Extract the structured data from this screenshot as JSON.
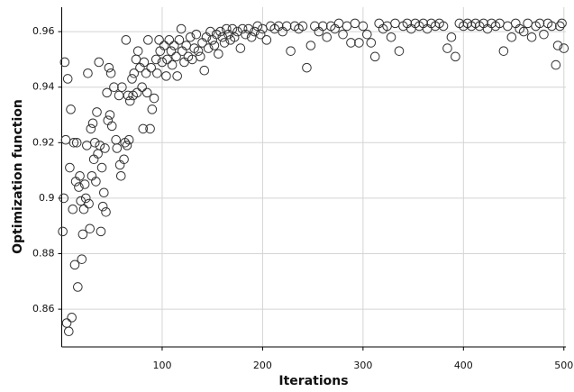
{
  "chart_data": {
    "type": "scatter",
    "xlabel": "Iterations",
    "ylabel": "Optimization function",
    "color": "#333333",
    "grid": true,
    "xlim": [
      0,
      502
    ],
    "ylim": [
      0.8464,
      0.9688
    ],
    "xticks": [
      100,
      200,
      300,
      400,
      500
    ],
    "yticks": [
      0.86,
      0.88,
      0.9,
      0.92,
      0.94,
      0.96
    ],
    "x": [
      1,
      2,
      3,
      4,
      5,
      6,
      7,
      8,
      9,
      10,
      11,
      12,
      13,
      14,
      15,
      16,
      17,
      18,
      19,
      20,
      21,
      22,
      23,
      24,
      25,
      26,
      27,
      28,
      29,
      30,
      31,
      32,
      33,
      34,
      35,
      36,
      37,
      38,
      39,
      40,
      41,
      42,
      43,
      44,
      45,
      46,
      47,
      48,
      49,
      50,
      52,
      54,
      55,
      57,
      58,
      59,
      60,
      62,
      63,
      64,
      65,
      66,
      67,
      68,
      70,
      71,
      72,
      74,
      75,
      76,
      78,
      80,
      81,
      82,
      84,
      85,
      86,
      88,
      89,
      90,
      92,
      94,
      95,
      97,
      98,
      100,
      102,
      104,
      105,
      107,
      109,
      110,
      112,
      114,
      115,
      117,
      119,
      120,
      122,
      124,
      126,
      128,
      130,
      132,
      134,
      136,
      138,
      140,
      142,
      144,
      146,
      148,
      150,
      152,
      154,
      156,
      158,
      160,
      162,
      164,
      166,
      168,
      170,
      172,
      175,
      178,
      180,
      183,
      186,
      189,
      192,
      195,
      198,
      200,
      204,
      208,
      212,
      216,
      220,
      224,
      228,
      232,
      236,
      240,
      244,
      248,
      252,
      256,
      260,
      264,
      268,
      272,
      276,
      280,
      284,
      288,
      292,
      296,
      300,
      304,
      308,
      312,
      316,
      320,
      324,
      328,
      332,
      336,
      340,
      344,
      348,
      352,
      356,
      360,
      364,
      368,
      372,
      376,
      380,
      384,
      388,
      392,
      396,
      400,
      404,
      408,
      412,
      416,
      420,
      424,
      428,
      432,
      436,
      440,
      444,
      448,
      452,
      456,
      460,
      464,
      468,
      472,
      476,
      480,
      484,
      488,
      492,
      494,
      496,
      498,
      500
    ],
    "values": [
      0.888,
      0.9,
      0.949,
      0.921,
      0.855,
      0.943,
      0.852,
      0.911,
      0.932,
      0.857,
      0.896,
      0.92,
      0.876,
      0.906,
      0.92,
      0.868,
      0.904,
      0.908,
      0.899,
      0.878,
      0.887,
      0.896,
      0.905,
      0.9,
      0.919,
      0.945,
      0.898,
      0.889,
      0.925,
      0.908,
      0.927,
      0.914,
      0.92,
      0.906,
      0.931,
      0.916,
      0.949,
      0.919,
      0.888,
      0.911,
      0.897,
      0.902,
      0.918,
      0.895,
      0.938,
      0.928,
      0.947,
      0.93,
      0.945,
      0.926,
      0.94,
      0.921,
      0.918,
      0.937,
      0.912,
      0.908,
      0.94,
      0.914,
      0.92,
      0.957,
      0.919,
      0.937,
      0.921,
      0.935,
      0.943,
      0.937,
      0.945,
      0.95,
      0.938,
      0.953,
      0.947,
      0.94,
      0.925,
      0.949,
      0.945,
      0.938,
      0.957,
      0.925,
      0.947,
      0.932,
      0.936,
      0.95,
      0.945,
      0.957,
      0.953,
      0.949,
      0.955,
      0.944,
      0.95,
      0.957,
      0.953,
      0.948,
      0.955,
      0.951,
      0.944,
      0.957,
      0.961,
      0.953,
      0.949,
      0.955,
      0.951,
      0.958,
      0.95,
      0.954,
      0.959,
      0.953,
      0.951,
      0.956,
      0.946,
      0.958,
      0.954,
      0.96,
      0.957,
      0.955,
      0.959,
      0.952,
      0.96,
      0.958,
      0.956,
      0.961,
      0.959,
      0.957,
      0.961,
      0.958,
      0.96,
      0.954,
      0.961,
      0.959,
      0.961,
      0.958,
      0.96,
      0.962,
      0.959,
      0.961,
      0.957,
      0.962,
      0.961,
      0.962,
      0.96,
      0.962,
      0.953,
      0.962,
      0.961,
      0.962,
      0.947,
      0.955,
      0.962,
      0.96,
      0.962,
      0.958,
      0.962,
      0.961,
      0.963,
      0.959,
      0.962,
      0.956,
      0.963,
      0.956,
      0.962,
      0.959,
      0.956,
      0.951,
      0.963,
      0.961,
      0.962,
      0.958,
      0.963,
      0.953,
      0.962,
      0.963,
      0.961,
      0.963,
      0.962,
      0.963,
      0.961,
      0.963,
      0.962,
      0.963,
      0.962,
      0.954,
      0.958,
      0.951,
      0.963,
      0.962,
      0.963,
      0.962,
      0.963,
      0.962,
      0.963,
      0.961,
      0.963,
      0.962,
      0.963,
      0.953,
      0.962,
      0.958,
      0.963,
      0.961,
      0.96,
      0.963,
      0.958,
      0.962,
      0.963,
      0.959,
      0.963,
      0.962,
      0.948,
      0.955,
      0.962,
      0.963,
      0.954
    ]
  }
}
